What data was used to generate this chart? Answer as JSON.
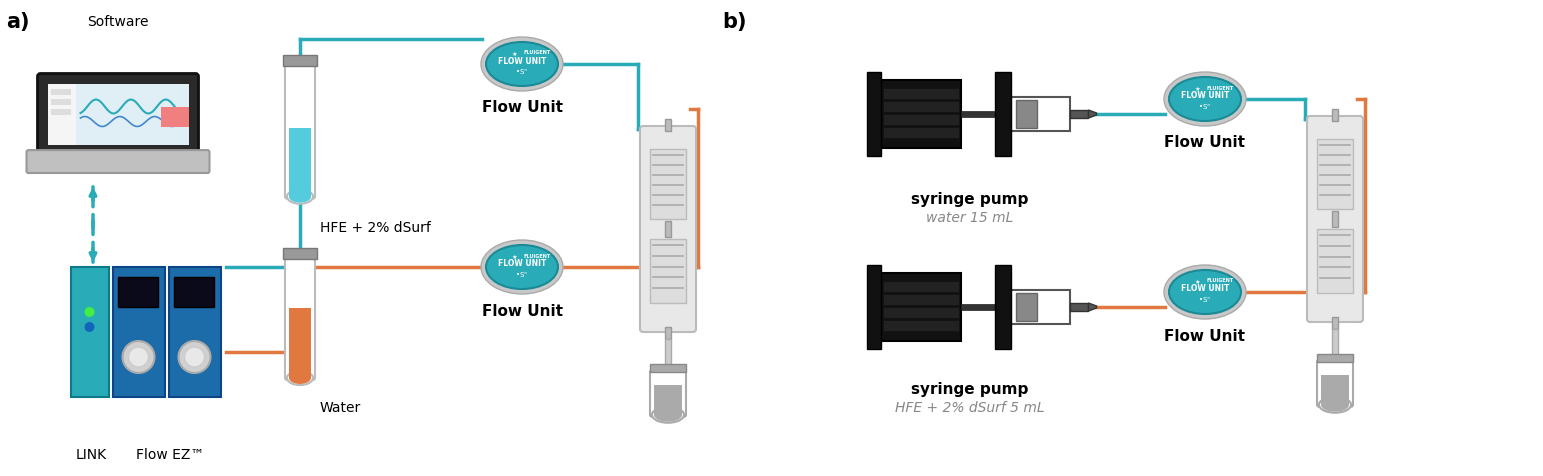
{
  "title_a": "a)",
  "title_b": "b)",
  "bg_color": "#ffffff",
  "teal_color": "#2AACB8",
  "orange_color": "#E07840",
  "blue_color": "#1B6CA8",
  "gray_color": "#AAAAAA",
  "dark_gray": "#888888",
  "light_gray": "#CCCCCC",
  "black": "#111111",
  "label_software": "Software",
  "label_link": "LINK",
  "label_flowez": "Flow EZ™",
  "label_hfe": "HFE + 2% dSurf",
  "label_water": "Water",
  "label_flow_unit": "Flow Unit",
  "label_fluigent": "FLUIGENT",
  "label_flow_unit_text": "FLOW UNIT",
  "label_es": "•Sⁿ",
  "label_syringe1": "syringe pump",
  "label_syringe1_sub": "water 15 mL",
  "label_syringe2": "syringe pump",
  "label_syringe2_sub": "HFE + 2% dSurf 5 mL"
}
